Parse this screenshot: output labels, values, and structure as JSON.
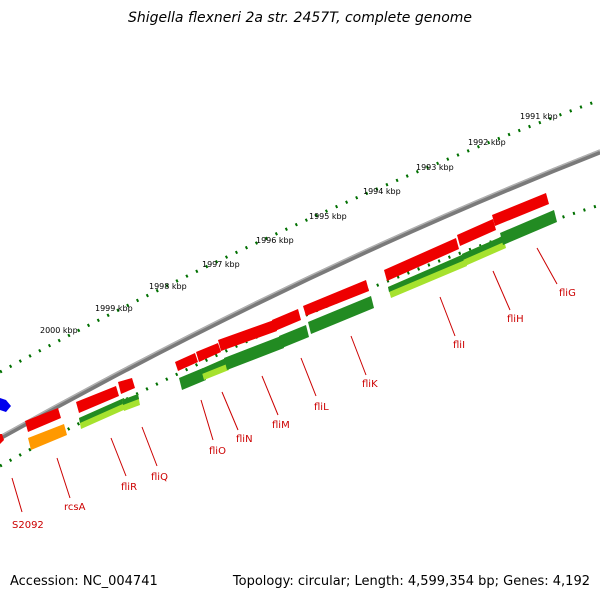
{
  "title": "Shigella flexneri 2a str. 2457T, complete genome",
  "accession": "Accession: NC_004741",
  "summary": "Topology: circular; Length: 4,599,354 bp; Genes: 4,192",
  "colors": {
    "backbone": "#808080",
    "gene": "#ee0000",
    "cds_dark": "#228b22",
    "cds_light": "#a6e22e",
    "rna": "#ff9900",
    "marker": "#0000ee",
    "label": "#cc0000",
    "ruler": "#006400"
  },
  "ruler_labels": [
    "2000 kbp",
    "1999 kbp",
    "1998 kbp",
    "1997 kbp",
    "1996 kbp",
    "1995 kbp",
    "1994 kbp",
    "1993 kbp",
    "1992 kbp",
    "1991 kbp"
  ],
  "gene_labels": [
    "S2092",
    "rcsA",
    "fliR",
    "fliQ",
    "fliO",
    "fliN",
    "fliM",
    "fliL",
    "fliK",
    "fliI",
    "fliH",
    "fliG"
  ]
}
